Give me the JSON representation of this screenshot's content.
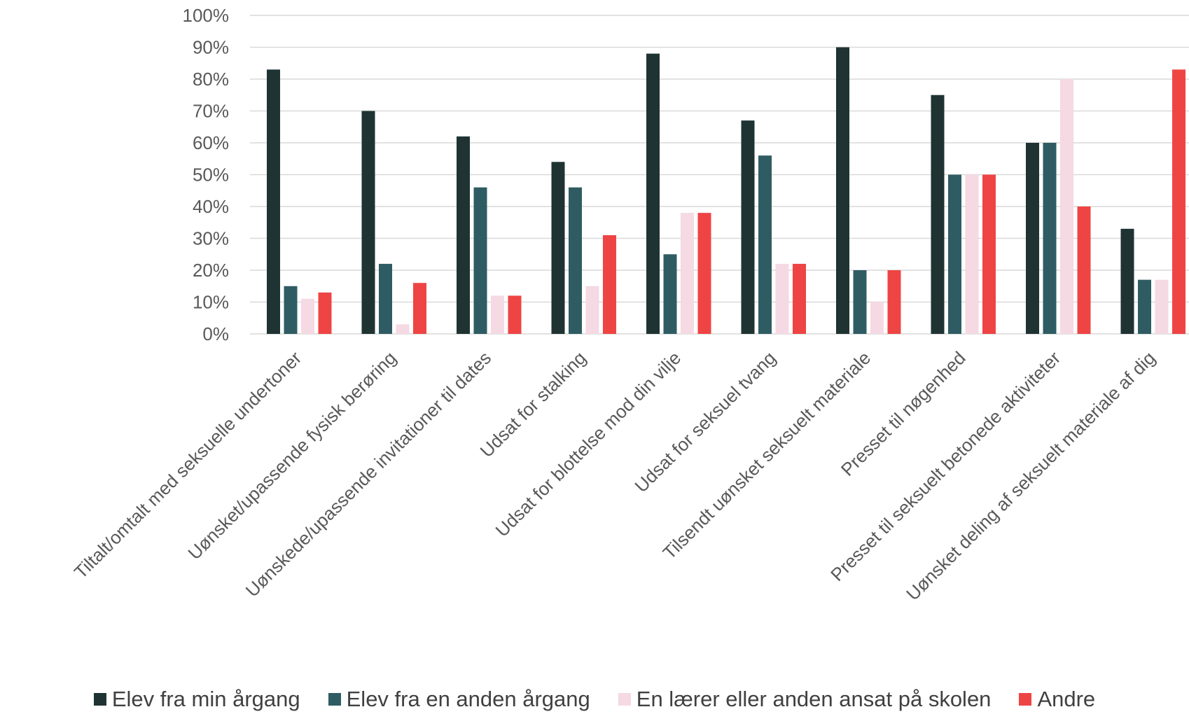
{
  "chart_data": {
    "type": "bar",
    "y_ticks": [
      "0%",
      "10%",
      "20%",
      "30%",
      "40%",
      "50%",
      "60%",
      "70%",
      "80%",
      "90%",
      "100%"
    ],
    "ylim": [
      0,
      100
    ],
    "grid": true,
    "legend_position": "bottom",
    "categories": [
      "Tiltalt/omtalt med seksuelle undertoner",
      "Uønsket/upassende fysisk berøring",
      "Uønskede/upassende invitationer til dates",
      "Udsat for stalking",
      "Udsat for blottelse mod din vilje",
      "Udsat for seksuel tvang",
      "Tilsendt uønsket seksuelt materiale",
      "Presset til nøgenhed",
      "Presset til seksuelt betonede aktiviteter",
      "Uønsket deling af seksuelt materiale af dig"
    ],
    "series": [
      {
        "name": "Elev fra min årgang",
        "color": "#1f3333",
        "values": [
          83,
          70,
          62,
          54,
          88,
          67,
          90,
          75,
          60,
          33
        ]
      },
      {
        "name": "Elev fra en anden årgang",
        "color": "#2f5c63",
        "values": [
          15,
          22,
          46,
          46,
          25,
          56,
          20,
          50,
          60,
          17
        ]
      },
      {
        "name": "En lærer eller anden ansat på skolen",
        "color": "#f5d9e3",
        "values": [
          11,
          3,
          12,
          15,
          38,
          22,
          10,
          50,
          80,
          17
        ]
      },
      {
        "name": "Andre",
        "color": "#ef4444",
        "values": [
          13,
          16,
          12,
          31,
          38,
          22,
          20,
          50,
          40,
          83
        ]
      }
    ]
  }
}
